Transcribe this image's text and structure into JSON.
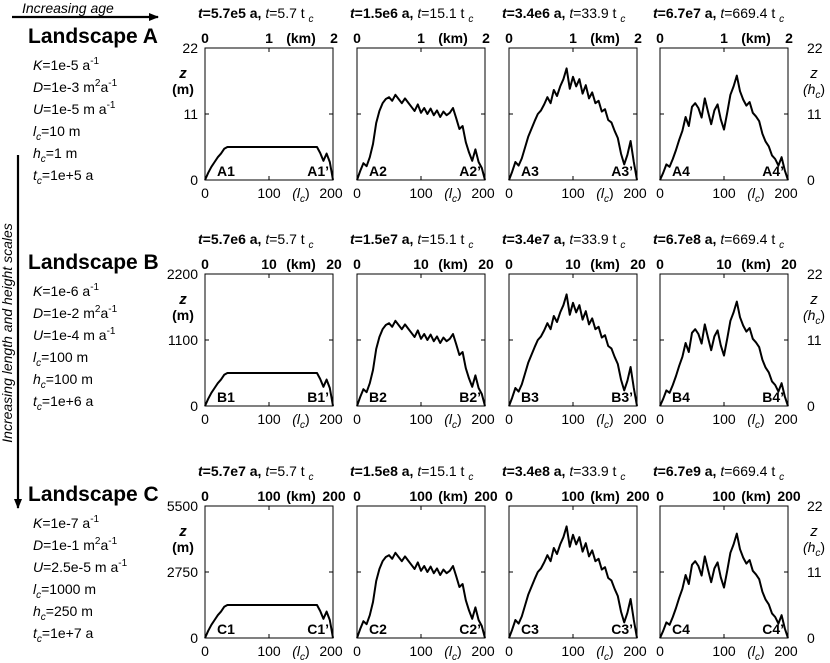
{
  "top_arrow_label": "Increasing age",
  "side_arrow_label": "Increasing length and height scales",
  "landscapes": [
    {
      "name": "Landscape A",
      "params": [
        {
          "sym": "K",
          "sub": "",
          "val": "=1e-5 a",
          "sup": "-1"
        },
        {
          "sym": "D",
          "sub": "",
          "val": "=1e-3 m",
          "sup": "2",
          "val2": "a",
          "sup2": "-1"
        },
        {
          "sym": "U",
          "sub": "",
          "val": "=1e-5 m a",
          "sup": "-1"
        },
        {
          "sym": "l",
          "sub": "c",
          "val": "=10 m"
        },
        {
          "sym": "h",
          "sub": "c",
          "val": "=1 m"
        },
        {
          "sym": "t",
          "sub": "c",
          "val": "=1e+5 a"
        }
      ],
      "z_ticks": [
        "0",
        "11",
        "22"
      ],
      "z_label": "z",
      "z_unit": "(m)",
      "km_ticks": [
        "0",
        "1",
        "2"
      ],
      "km_label": "(km)",
      "panels": [
        {
          "t_abs": "t=5.7e5 a,",
          "t_rel": "t=5.7 t",
          "left": "A1",
          "right": "A1’"
        },
        {
          "t_abs": "t=1.5e6 a,",
          "t_rel": "t=15.1 t",
          "left": "A2",
          "right": "A2’"
        },
        {
          "t_abs": "t=3.4e6 a,",
          "t_rel": "t=33.9 t",
          "left": "A3",
          "right": "A3’"
        },
        {
          "t_abs": "t=6.7e7 a,",
          "t_rel": "t=669.4 t",
          "left": "A4",
          "right": "A4’"
        }
      ]
    },
    {
      "name": "Landscape B",
      "params": [
        {
          "sym": "K",
          "sub": "",
          "val": "=1e-6 a",
          "sup": "-1"
        },
        {
          "sym": "D",
          "sub": "",
          "val": "=1e-2 m",
          "sup": "2",
          "val2": "a",
          "sup2": "-1"
        },
        {
          "sym": "U",
          "sub": "",
          "val": "=1e-4 m a",
          "sup": "-1"
        },
        {
          "sym": "l",
          "sub": "c",
          "val": "=100 m"
        },
        {
          "sym": "h",
          "sub": "c",
          "val": "=100 m"
        },
        {
          "sym": "t",
          "sub": "c",
          "val": "=1e+6 a"
        }
      ],
      "z_ticks": [
        "0",
        "1100",
        "2200"
      ],
      "z_label": "z",
      "z_unit": "(m)",
      "km_ticks": [
        "0",
        "10",
        "20"
      ],
      "km_label": "(km)",
      "panels": [
        {
          "t_abs": "t=5.7e6 a,",
          "t_rel": "t=5.7 t",
          "left": "B1",
          "right": "B1’"
        },
        {
          "t_abs": "t=1.5e7 a,",
          "t_rel": "t=15.1 t",
          "left": "B2",
          "right": "B2’"
        },
        {
          "t_abs": "t=3.4e7 a,",
          "t_rel": "t=33.9 t",
          "left": "B3",
          "right": "B3’"
        },
        {
          "t_abs": "t=6.7e8 a,",
          "t_rel": "t=669.4 t",
          "left": "B4",
          "right": "B4’"
        }
      ]
    },
    {
      "name": "Landscape C",
      "params": [
        {
          "sym": "K",
          "sub": "",
          "val": "=1e-7 a",
          "sup": "-1"
        },
        {
          "sym": "D",
          "sub": "",
          "val": "=1e-1 m",
          "sup": "2",
          "val2": "a",
          "sup2": "-1"
        },
        {
          "sym": "U",
          "sub": "",
          "val": "=2.5e-5 m a",
          "sup": "-1"
        },
        {
          "sym": "l",
          "sub": "c",
          "val": "=1000 m"
        },
        {
          "sym": "h",
          "sub": "c",
          "val": "=250 m"
        },
        {
          "sym": "t",
          "sub": "c",
          "val": "=1e+7 a"
        }
      ],
      "z_ticks": [
        "0",
        "2750",
        "5500"
      ],
      "z_label": "z",
      "z_unit": "(m)",
      "km_ticks": [
        "0",
        "100",
        "200"
      ],
      "km_label": "(km)",
      "panels": [
        {
          "t_abs": "t=5.7e7 a,",
          "t_rel": "t=5.7 t",
          "left": "C1",
          "right": "C1’"
        },
        {
          "t_abs": "t=1.5e8 a,",
          "t_rel": "t=15.1 t",
          "left": "C2",
          "right": "C2’"
        },
        {
          "t_abs": "t=3.4e8 a,",
          "t_rel": "t=33.9 t",
          "left": "C3",
          "right": "C3’"
        },
        {
          "t_abs": "t=6.7e9 a,",
          "t_rel": "t=669.4 t",
          "left": "C4",
          "right": "C4’"
        }
      ]
    }
  ],
  "t_rel_sub": "c",
  "x_ticks": [
    "0",
    "100",
    "200"
  ],
  "x_label": "(l",
  "x_label_sub": "c",
  "x_label_close": ")",
  "hc_ticks": [
    "0",
    "11",
    "22"
  ],
  "hc_label": "z",
  "hc_unit_open": "(h",
  "hc_unit_sub": "c",
  "hc_unit_close": ")",
  "profiles": {
    "x": [
      0,
      5,
      10,
      15,
      20,
      25,
      30,
      35,
      40,
      45,
      50,
      55,
      60,
      65,
      70,
      75,
      80,
      85,
      90,
      95,
      100,
      105,
      110,
      115,
      120,
      125,
      130,
      135,
      140,
      145,
      150,
      155,
      160,
      165,
      170,
      175,
      180,
      185,
      190,
      195,
      200
    ],
    "p1": [
      0,
      1.2,
      2.2,
      3.0,
      3.8,
      4.4,
      5.2,
      5.5,
      5.5,
      5.5,
      5.5,
      5.5,
      5.5,
      5.5,
      5.5,
      5.5,
      5.5,
      5.5,
      5.5,
      5.5,
      5.5,
      5.5,
      5.5,
      5.5,
      5.5,
      5.5,
      5.5,
      5.5,
      5.5,
      5.5,
      5.5,
      5.5,
      5.5,
      5.5,
      5.5,
      5.5,
      4.5,
      3.2,
      4.4,
      3.0,
      0
    ],
    "p2": [
      0,
      1.5,
      2.8,
      2.3,
      3.8,
      6.0,
      9.5,
      11.5,
      12.8,
      13.5,
      13.8,
      13.2,
      14.2,
      13.5,
      12.8,
      13.6,
      12.9,
      12.2,
      11.5,
      12.6,
      11.2,
      12.0,
      11.0,
      11.9,
      10.8,
      11.6,
      10.5,
      11.4,
      10.8,
      11.2,
      12.0,
      10.3,
      8.5,
      9.0,
      6.3,
      4.6,
      3.2,
      5.1,
      3.0,
      2.0,
      0
    ],
    "p3": [
      0,
      1.4,
      3.0,
      2.4,
      3.6,
      5.4,
      7.2,
      8.5,
      9.8,
      11.0,
      11.6,
      12.6,
      13.8,
      12.8,
      15.0,
      14.0,
      15.6,
      16.8,
      18.6,
      15.2,
      17.2,
      15.6,
      16.8,
      14.4,
      15.8,
      13.6,
      14.6,
      12.8,
      13.2,
      11.4,
      11.8,
      10.0,
      9.6,
      8.2,
      7.0,
      4.4,
      2.6,
      4.2,
      6.5,
      3.0,
      0
    ],
    "p4": [
      0,
      1.2,
      2.6,
      2.2,
      3.5,
      5.0,
      6.7,
      8.2,
      10.5,
      9.0,
      12.2,
      12.8,
      12.0,
      10.4,
      13.6,
      11.4,
      9.3,
      11.6,
      12.6,
      10.1,
      8.4,
      11.2,
      14.2,
      15.6,
      17.4,
      14.8,
      13.4,
      12.4,
      13.0,
      11.2,
      10.6,
      9.8,
      7.7,
      6.4,
      5.6,
      4.1,
      3.5,
      2.4,
      3.8,
      1.6,
      0
    ]
  }
}
